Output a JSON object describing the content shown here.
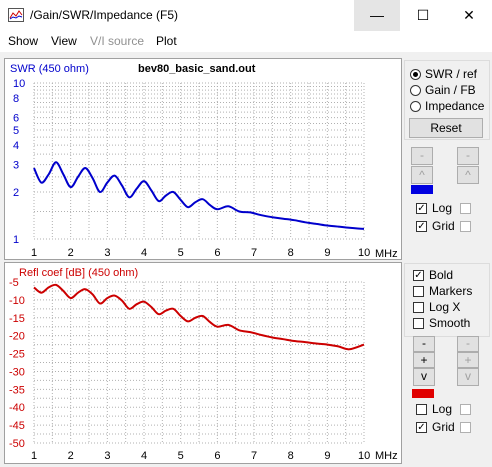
{
  "window": {
    "title": "/Gain/SWR/Impedance (F5)",
    "minimize_glyph": "—",
    "maximize_glyph": "☐",
    "close_glyph": "✕"
  },
  "menu": [
    "Show",
    "View",
    "V/I source",
    "Plot"
  ],
  "panel_top": {
    "radios": [
      {
        "label": "SWR / ref",
        "selected": true
      },
      {
        "label": "Gain / FB",
        "selected": false
      },
      {
        "label": "Impedance",
        "selected": false
      }
    ],
    "reset_label": "Reset",
    "minus_label": "-",
    "caret_label": "^",
    "v_label": "v",
    "swatch_color": "#0000e0",
    "log_label": "Log",
    "log_checked": true,
    "grid_label": "Grid",
    "grid_checked": true
  },
  "panel_bottom": {
    "bold_label": "Bold",
    "bold_checked": true,
    "markers_label": "Markers",
    "markers_checked": false,
    "logx_label": "Log X",
    "logx_checked": false,
    "smooth_label": "Smooth",
    "smooth_checked": false,
    "minus_label": "-",
    "plus_label": "+",
    "v_label": "v",
    "swatch_color": "#e00000",
    "log_label": "Log",
    "log_checked": false,
    "grid_label": "Grid",
    "grid_checked": true
  },
  "chart_data": [
    {
      "type": "line",
      "title": "bev80_basic_sand.out",
      "ylabel": "SWR (450 ohm)",
      "xunit": "MHz",
      "yscale": "log",
      "ylim": [
        1,
        10
      ],
      "xlim": [
        1,
        10
      ],
      "xticks": [
        "1",
        "2",
        "3",
        "4",
        "5",
        "6",
        "7",
        "8",
        "9",
        "10"
      ],
      "yticks": [
        "1",
        "2",
        "3",
        "4",
        "5",
        "6",
        "8",
        "10"
      ],
      "color": "#0000cc",
      "grid": true,
      "x": [
        1.0,
        1.2,
        1.4,
        1.6,
        1.8,
        2.0,
        2.2,
        2.4,
        2.6,
        2.8,
        3.0,
        3.2,
        3.4,
        3.6,
        3.8,
        4.0,
        4.2,
        4.4,
        4.6,
        4.8,
        5.0,
        5.2,
        5.4,
        5.6,
        5.8,
        6.0,
        6.3,
        6.6,
        6.9,
        7.2,
        7.5,
        7.8,
        8.1,
        8.4,
        8.7,
        9.0,
        9.3,
        9.6,
        10.0
      ],
      "y": [
        2.85,
        2.3,
        2.6,
        3.1,
        2.6,
        2.15,
        2.5,
        2.85,
        2.45,
        2.0,
        2.3,
        2.55,
        2.2,
        1.85,
        2.1,
        2.35,
        2.05,
        1.75,
        1.9,
        2.0,
        1.78,
        1.6,
        1.72,
        1.8,
        1.65,
        1.55,
        1.62,
        1.5,
        1.48,
        1.42,
        1.38,
        1.35,
        1.32,
        1.28,
        1.25,
        1.22,
        1.2,
        1.18,
        1.16
      ]
    },
    {
      "type": "line",
      "title": "",
      "ylabel": "Refl coef [dB] (450 ohm)",
      "xunit": "MHz",
      "ylim": [
        -50,
        -5
      ],
      "xlim": [
        1,
        10
      ],
      "xticks": [
        "1",
        "2",
        "3",
        "4",
        "5",
        "6",
        "7",
        "8",
        "9",
        "10"
      ],
      "yticks": [
        "-5",
        "-10",
        "-15",
        "-20",
        "-25",
        "-30",
        "-35",
        "-40",
        "-45",
        "-50"
      ],
      "color": "#cc0000",
      "grid": true,
      "x": [
        1.0,
        1.2,
        1.4,
        1.6,
        1.8,
        2.0,
        2.2,
        2.4,
        2.6,
        2.8,
        3.0,
        3.2,
        3.4,
        3.6,
        3.8,
        4.0,
        4.2,
        4.4,
        4.6,
        4.8,
        5.0,
        5.2,
        5.4,
        5.6,
        5.8,
        6.0,
        6.3,
        6.6,
        6.9,
        7.2,
        7.5,
        7.8,
        8.1,
        8.4,
        8.7,
        9.0,
        9.3,
        9.6,
        10.0
      ],
      "y": [
        -6.5,
        -8.0,
        -6.5,
        -5.8,
        -7.5,
        -9.5,
        -8.0,
        -7.0,
        -8.5,
        -11.0,
        -9.5,
        -8.8,
        -10.2,
        -12.5,
        -11.2,
        -10.5,
        -12.0,
        -14.0,
        -13.0,
        -12.5,
        -14.5,
        -16.0,
        -15.0,
        -14.5,
        -16.2,
        -17.5,
        -17.0,
        -18.5,
        -19.0,
        -19.8,
        -20.5,
        -21.0,
        -21.5,
        -21.8,
        -22.2,
        -22.5,
        -23.0,
        -23.8,
        -22.5
      ]
    }
  ]
}
